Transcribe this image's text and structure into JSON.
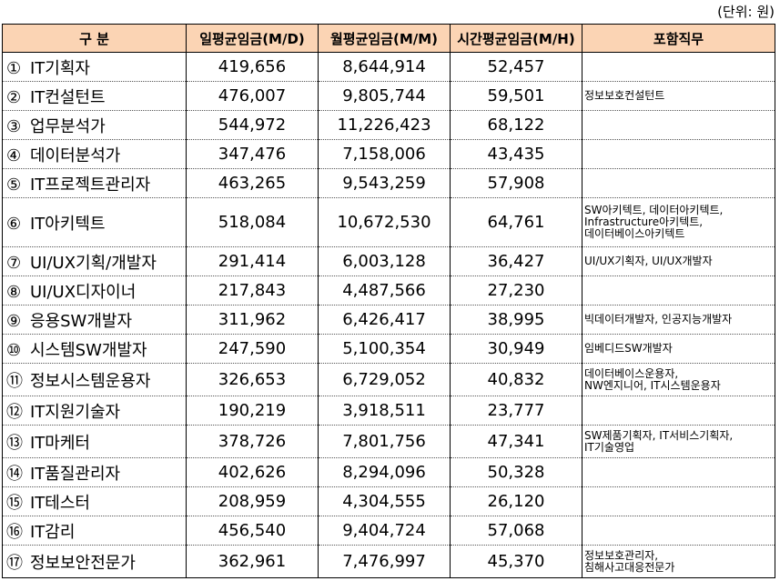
{
  "unit_note": "(단위: 원)",
  "headers": [
    "구 분",
    "일평균임금(M/D)",
    "월평균임금(M/M)",
    "시간평균임금(M/H)",
    "포함직무"
  ],
  "rows": [
    {
      "no": "①",
      "name": "IT기획자",
      "daily": "419,656",
      "monthly": "8,644,914",
      "hourly": "52,457",
      "duties": []
    },
    {
      "no": "②",
      "name": "IT컨설턴트",
      "daily": "476,007",
      "monthly": "9,805,744",
      "hourly": "59,501",
      "duties": [
        "정보보호컨설턴트"
      ]
    },
    {
      "no": "③",
      "name": "업무분석가",
      "daily": "544,972",
      "monthly": "11,226,423",
      "hourly": "68,122",
      "duties": []
    },
    {
      "no": "④",
      "name": "데이터분석가",
      "daily": "347,476",
      "monthly": "7,158,006",
      "hourly": "43,435",
      "duties": []
    },
    {
      "no": "⑤",
      "name": "IT프로젝트관리자",
      "daily": "463,265",
      "monthly": "9,543,259",
      "hourly": "57,908",
      "duties": []
    },
    {
      "no": "⑥",
      "name": "IT아키텍트",
      "daily": "518,084",
      "monthly": "10,672,530",
      "hourly": "64,761",
      "duties": [
        "SW아키텍트, 데이터아키텍트,",
        "Infrastructure아키텍트,",
        "데이터베이스아키텍트"
      ]
    },
    {
      "no": "⑦",
      "name": "UI/UX기획/개발자",
      "daily": "291,414",
      "monthly": "6,003,128",
      "hourly": "36,427",
      "duties": [
        "UI/UX기획자, UI/UX개발자"
      ]
    },
    {
      "no": "⑧",
      "name": "UI/UX디자이너",
      "daily": "217,843",
      "monthly": "4,487,566",
      "hourly": "27,230",
      "duties": []
    },
    {
      "no": "⑨",
      "name": "응용SW개발자",
      "daily": "311,962",
      "monthly": "6,426,417",
      "hourly": "38,995",
      "duties": [
        "빅데이터개발자, 인공지능개발자"
      ]
    },
    {
      "no": "⑩",
      "name": "시스템SW개발자",
      "daily": "247,590",
      "monthly": "5,100,354",
      "hourly": "30,949",
      "duties": [
        "임베디드SW개발자"
      ]
    },
    {
      "no": "⑪",
      "name": "정보시스템운용자",
      "daily": "326,653",
      "monthly": "6,729,052",
      "hourly": "40,832",
      "duties": [
        "데이터베이스운용자,",
        "NW엔지니어, IT시스템운용자"
      ]
    },
    {
      "no": "⑫",
      "name": "IT지원기술자",
      "daily": "190,219",
      "monthly": "3,918,511",
      "hourly": "23,777",
      "duties": []
    },
    {
      "no": "⑬",
      "name": "IT마케터",
      "daily": "378,726",
      "monthly": "7,801,756",
      "hourly": "47,341",
      "duties": [
        "SW제품기획자, IT서비스기획자,",
        "IT기술영업"
      ]
    },
    {
      "no": "⑭",
      "name": "IT품질관리자",
      "daily": "402,626",
      "monthly": "8,294,096",
      "hourly": "50,328",
      "duties": []
    },
    {
      "no": "⑮",
      "name": "IT테스터",
      "daily": "208,959",
      "monthly": "4,304,555",
      "hourly": "26,120",
      "duties": []
    },
    {
      "no": "⑯",
      "name": "IT감리",
      "daily": "456,540",
      "monthly": "9,404,724",
      "hourly": "57,068",
      "duties": []
    },
    {
      "no": "⑰",
      "name": "정보보안전문가",
      "daily": "362,961",
      "monthly": "7,476,997",
      "hourly": "45,370",
      "duties": [
        "정보보호관리자,",
        "침해사고대응전문가"
      ]
    }
  ]
}
